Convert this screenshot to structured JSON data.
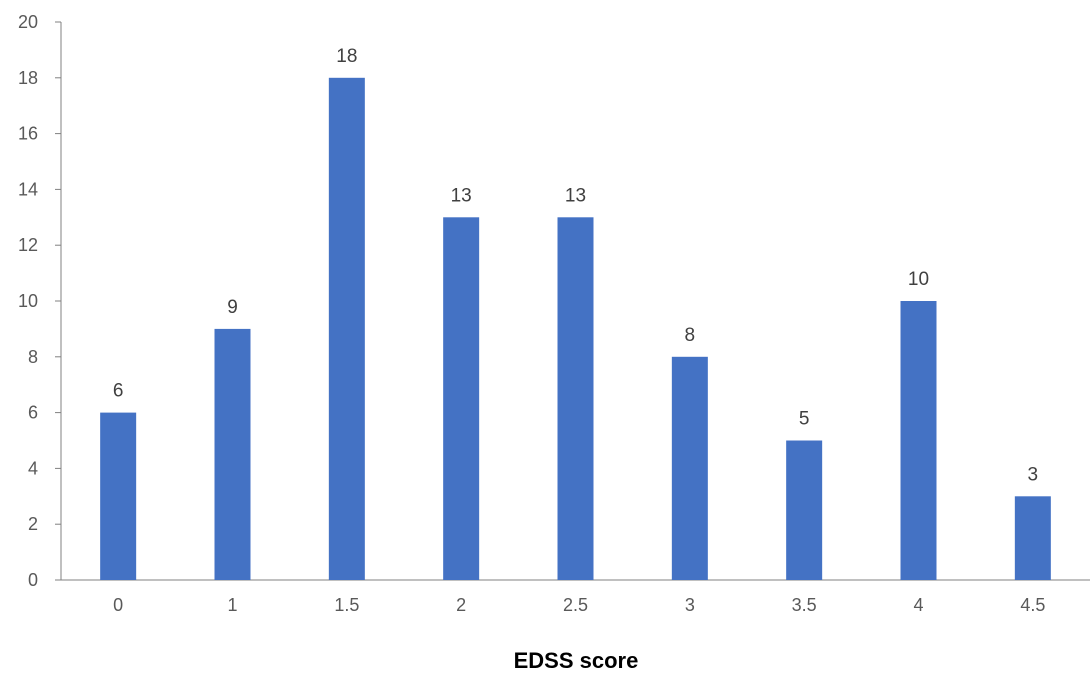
{
  "chart_data": {
    "type": "bar",
    "title": "",
    "xlabel": "EDSS score",
    "ylabel": "",
    "categories": [
      "0",
      "1",
      "1.5",
      "2",
      "2.5",
      "3",
      "3.5",
      "4",
      "4.5"
    ],
    "values": [
      6,
      9,
      18,
      13,
      13,
      8,
      5,
      10,
      3
    ],
    "ylim": [
      0,
      20
    ],
    "yticks": [
      0,
      2,
      4,
      6,
      8,
      10,
      12,
      14,
      16,
      18,
      20
    ],
    "data_labels": true,
    "grid": false,
    "legend": "none",
    "colors": {
      "bar": "#4472C4",
      "axis": "#808080",
      "tick_text": "#595959",
      "data_label_text": "#404040"
    }
  }
}
